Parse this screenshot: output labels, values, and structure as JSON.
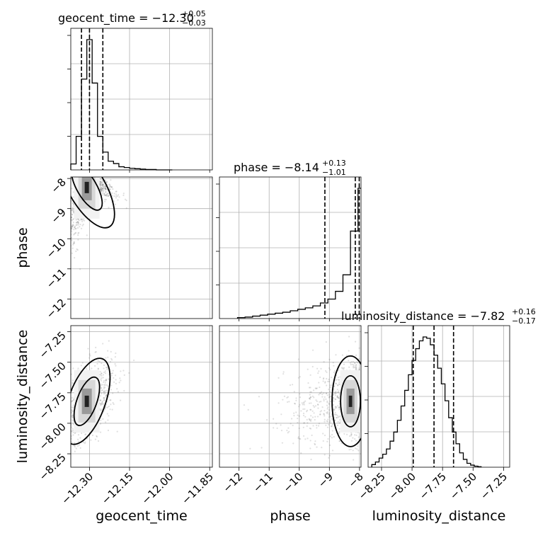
{
  "chart_data": {
    "type": "corner",
    "parameters": [
      "geocent_time",
      "phase",
      "luminosity_distance"
    ],
    "titles": {
      "geocent_time": {
        "label": "geocent_time",
        "median": "−12.30",
        "plus": "+0.05",
        "minus": "−0.03"
      },
      "phase": {
        "label": "phase",
        "median": "−8.14",
        "plus": "+0.13",
        "minus": "−1.01"
      },
      "luminosity_distance": {
        "label": "luminosity_distance",
        "median": "−7.82",
        "plus": "+0.16",
        "minus": "−0.17"
      }
    },
    "ranges": {
      "geocent_time": [
        -12.37,
        -11.84
      ],
      "phase": [
        -12.65,
        -7.95
      ],
      "luminosity_distance": [
        -8.36,
        -7.2
      ]
    },
    "ticks": {
      "geocent_time": {
        "values": [
          -12.3,
          -12.15,
          -12.0,
          -11.85
        ],
        "labels": [
          "−12.30",
          "−12.15",
          "−12.00",
          "−11.85"
        ]
      },
      "phase": {
        "values": [
          -12,
          -11,
          -10,
          -9,
          -8
        ],
        "labels": [
          "−12",
          "−11",
          "−10",
          "−9",
          "−8"
        ]
      },
      "luminosity_distance": {
        "values": [
          -8.25,
          -8.0,
          -7.75,
          -7.5,
          -7.25
        ],
        "labels": [
          "−8.25",
          "−8.00",
          "−7.75",
          "−7.50",
          "−7.25"
        ]
      }
    },
    "histograms": {
      "geocent_time": {
        "bins": [
          -12.37,
          -12.35,
          -12.33,
          -12.31,
          -12.29,
          -12.27,
          -12.25,
          -12.23,
          -12.21,
          -12.19,
          -12.17,
          -12.15,
          -12.13,
          -12.11,
          -12.09,
          -12.07,
          -12.05,
          -12.03,
          -12.01,
          -11.99
        ],
        "counts": [
          0.15,
          0.85,
          2.3,
          3.3,
          2.2,
          0.85,
          0.45,
          0.22,
          0.16,
          0.08,
          0.06,
          0.04,
          0.03,
          0.02,
          0.01,
          0.01,
          0.0,
          0.0,
          0.0
        ],
        "quantiles": [
          -12.33,
          -12.3,
          -12.25
        ]
      },
      "phase": {
        "bins": [
          -12.05,
          -11.8,
          -11.55,
          -11.3,
          -11.05,
          -10.8,
          -10.55,
          -10.3,
          -10.05,
          -9.8,
          -9.55,
          -9.3,
          -9.05,
          -8.8,
          -8.55,
          -8.3,
          -8.05,
          -7.95
        ],
        "counts": [
          0.1,
          0.15,
          0.25,
          0.35,
          0.45,
          0.55,
          0.65,
          0.8,
          0.95,
          1.1,
          1.3,
          1.6,
          2.0,
          2.8,
          4.5,
          9.0,
          13.4
        ],
        "quantiles": [
          -9.15,
          -8.14,
          -8.01
        ]
      },
      "luminosity_distance": {
        "bins": [
          -8.33,
          -8.3,
          -8.27,
          -8.24,
          -8.21,
          -8.18,
          -8.15,
          -8.12,
          -8.09,
          -8.06,
          -8.03,
          -8.0,
          -7.97,
          -7.94,
          -7.91,
          -7.88,
          -7.85,
          -7.82,
          -7.79,
          -7.76,
          -7.73,
          -7.7,
          -7.67,
          -7.64,
          -7.61,
          -7.58,
          -7.55,
          -7.52,
          -7.49,
          -7.46,
          -7.43
        ],
        "counts": [
          0.1,
          0.2,
          0.35,
          0.5,
          0.7,
          1.0,
          1.35,
          1.8,
          2.35,
          2.95,
          3.55,
          4.1,
          4.55,
          4.85,
          5.0,
          4.95,
          4.7,
          4.3,
          3.8,
          3.2,
          2.55,
          1.9,
          1.35,
          0.9,
          0.55,
          0.3,
          0.15,
          0.08,
          0.04,
          0.02
        ],
        "quantiles": [
          -7.99,
          -7.82,
          -7.66
        ]
      }
    },
    "grid": true
  }
}
